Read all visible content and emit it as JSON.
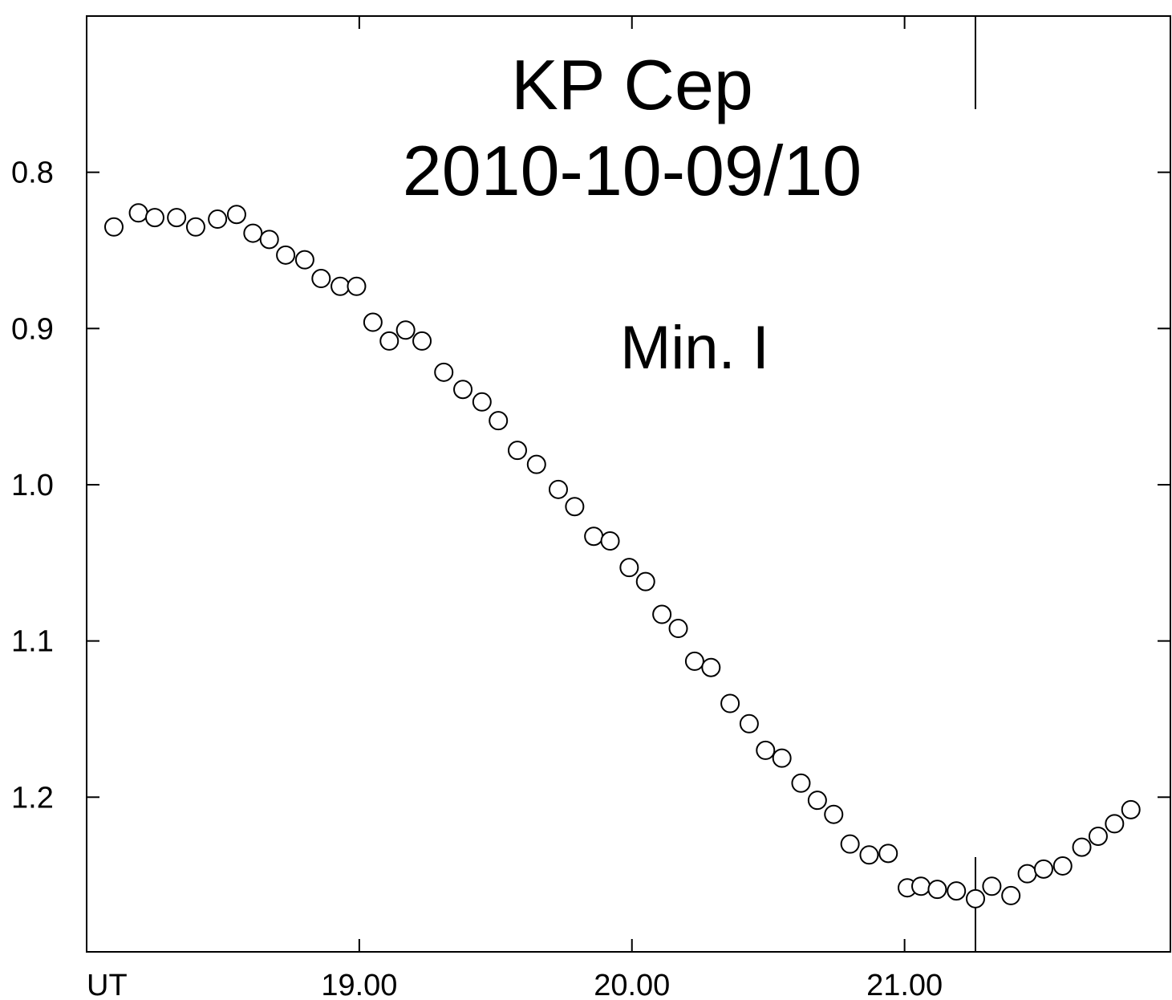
{
  "chart_data": {
    "type": "scatter",
    "title": "KP Cep",
    "subtitle": "2010-10-09/10",
    "annotation": "Min. I",
    "xlabel": "UT",
    "ylabel": "",
    "xlim": [
      18.0,
      21.975
    ],
    "ylim": [
      1.299,
      0.7
    ],
    "y_inverted": true,
    "grid": false,
    "legend": "none",
    "marker": "open-circle",
    "colors": {
      "marker_stroke": "#000000",
      "axis": "#000000",
      "background": "#ffffff"
    },
    "x_ticks": [
      {
        "value": 19.0,
        "label": "19.00"
      },
      {
        "value": 20.0,
        "label": "20.00"
      },
      {
        "value": 21.0,
        "label": "21.00"
      }
    ],
    "y_ticks": [
      {
        "value": 0.8,
        "label": "0.8"
      },
      {
        "value": 0.9,
        "label": "0.9"
      },
      {
        "value": 1.0,
        "label": "1.0"
      },
      {
        "value": 1.1,
        "label": "1.1"
      },
      {
        "value": 1.2,
        "label": "1.2"
      }
    ],
    "minimum_time": 21.26,
    "series": [
      {
        "x": [
          18.1,
          18.19,
          18.25,
          18.33,
          18.4,
          18.48,
          18.55,
          18.61,
          18.67,
          18.73,
          18.8,
          18.86,
          18.93,
          18.99,
          19.05,
          19.11,
          19.17,
          19.23,
          19.31,
          19.38,
          19.45,
          19.51,
          19.58,
          19.65,
          19.73,
          19.79,
          19.86,
          19.92,
          19.99,
          20.05,
          20.11,
          20.17,
          20.23,
          20.29,
          20.36,
          20.43,
          20.49,
          20.55,
          20.62,
          20.68,
          20.74,
          20.8,
          20.87,
          20.94,
          21.01,
          21.06,
          21.12,
          21.19,
          21.26,
          21.32,
          21.39,
          21.45,
          21.51,
          21.58,
          21.65,
          21.71,
          21.77,
          21.83
        ],
        "y": [
          0.835,
          0.826,
          0.829,
          0.829,
          0.835,
          0.83,
          0.827,
          0.839,
          0.843,
          0.853,
          0.856,
          0.868,
          0.873,
          0.873,
          0.896,
          0.908,
          0.901,
          0.908,
          0.928,
          0.939,
          0.947,
          0.959,
          0.978,
          0.987,
          1.003,
          1.014,
          1.033,
          1.036,
          1.053,
          1.062,
          1.083,
          1.092,
          1.113,
          1.117,
          1.14,
          1.153,
          1.17,
          1.175,
          1.191,
          1.202,
          1.211,
          1.23,
          1.237,
          1.236,
          1.258,
          1.257,
          1.259,
          1.26,
          1.265,
          1.257,
          1.263,
          1.249,
          1.246,
          1.244,
          1.232,
          1.225,
          1.217,
          1.208
        ]
      }
    ]
  }
}
